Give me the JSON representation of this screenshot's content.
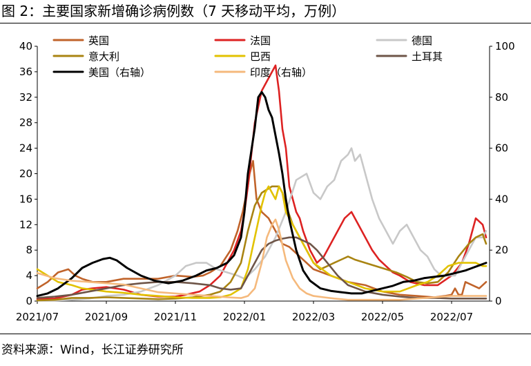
{
  "page": {
    "title": "图 2：主要国家新增确诊病例数（7 天移动平均，万例）",
    "source": "资料来源：Wind，长江证券研究所"
  },
  "chart_data": {
    "type": "line",
    "title": "主要国家新增确诊病例数（7 天移动平均，万例）",
    "xlabel": "",
    "ylabel": "",
    "ylim_left": [
      0,
      40
    ],
    "ylim_right": [
      0,
      100
    ],
    "yticks_left": [
      "0",
      "4",
      "8",
      "12",
      "16",
      "20",
      "24",
      "28",
      "32",
      "36",
      "40"
    ],
    "yticks_right": [
      "0",
      "20",
      "40",
      "60",
      "80",
      "100"
    ],
    "xticks": [
      {
        "label": "2021/07",
        "m": 0
      },
      {
        "label": "2021/09",
        "m": 2
      },
      {
        "label": "2021/11",
        "m": 4
      },
      {
        "label": "2022/01",
        "m": 6
      },
      {
        "label": "2022/03",
        "m": 8
      },
      {
        "label": "2022/05",
        "m": 10
      },
      {
        "label": "2022/07",
        "m": 12
      }
    ],
    "x_range_months": [
      0,
      13.1
    ],
    "x_unit": "months since 2021-07-01",
    "grid": false,
    "series": [
      {
        "name": "英国",
        "axis": "left",
        "color": "#C0632A",
        "x": [
          0,
          0.3,
          0.6,
          0.9,
          1.1,
          1.3,
          1.6,
          2.0,
          2.5,
          3.0,
          3.5,
          4.0,
          4.5,
          4.8,
          5.0,
          5.3,
          5.6,
          5.8,
          5.95,
          6.1,
          6.15,
          6.25,
          6.35,
          6.5,
          6.7,
          6.9,
          7.1,
          7.3,
          7.6,
          8.0,
          8.5,
          9.0,
          9.5,
          10.0,
          10.5,
          11.0,
          11.5,
          11.8,
          12.0,
          12.1,
          12.2,
          12.3,
          12.4,
          12.6,
          12.8,
          13.0
        ],
        "y": [
          2,
          3,
          4.5,
          5,
          4,
          3.5,
          3,
          3,
          3.5,
          3.5,
          3.5,
          4,
          3.8,
          4,
          4.5,
          5.5,
          8,
          11,
          14,
          18,
          20,
          22,
          16,
          14,
          13,
          11,
          9,
          8.5,
          7,
          5,
          4,
          3,
          2.5,
          1.5,
          1,
          0.8,
          0.6,
          0.8,
          1,
          2,
          1,
          1,
          3,
          2.5,
          2,
          3
        ]
      },
      {
        "name": "法国",
        "axis": "left",
        "color": "#DD2222",
        "x": [
          0,
          0.5,
          1.0,
          1.3,
          1.6,
          2.0,
          2.5,
          3.0,
          3.5,
          4.0,
          4.3,
          4.7,
          5.0,
          5.3,
          5.5,
          5.7,
          5.9,
          6.0,
          6.1,
          6.3,
          6.5,
          6.7,
          6.9,
          7.0,
          7.1,
          7.2,
          7.3,
          7.4,
          7.5,
          7.6,
          7.7,
          7.9,
          8.1,
          8.3,
          8.6,
          8.9,
          9.1,
          9.3,
          9.5,
          9.7,
          9.9,
          10.1,
          10.3,
          10.5,
          10.8,
          11.2,
          11.6,
          12.0,
          12.3,
          12.5,
          12.7,
          12.9,
          13.0
        ],
        "y": [
          0.3,
          0.4,
          1,
          1.8,
          2,
          2.2,
          1.8,
          1,
          0.7,
          0.7,
          1,
          1.5,
          2.5,
          4,
          6,
          8,
          11,
          14,
          18,
          28,
          33,
          35,
          37,
          33,
          27,
          24,
          18,
          16,
          14,
          13,
          11,
          8,
          6,
          7,
          10,
          13,
          14,
          12,
          10,
          8,
          6.5,
          5.5,
          4.5,
          4,
          3,
          2.5,
          2.5,
          4,
          6,
          9,
          13,
          12,
          10
        ]
      },
      {
        "name": "德国",
        "axis": "left",
        "color": "#C8C8C8",
        "x": [
          0,
          0.5,
          1.0,
          1.5,
          2.0,
          2.5,
          3.0,
          3.5,
          4.0,
          4.3,
          4.6,
          4.9,
          5.2,
          5.5,
          5.8,
          6.0,
          6.3,
          6.6,
          6.9,
          7.2,
          7.5,
          7.8,
          8.0,
          8.2,
          8.4,
          8.6,
          8.8,
          9.0,
          9.1,
          9.2,
          9.35,
          9.5,
          9.7,
          9.9,
          10.1,
          10.3,
          10.5,
          10.7,
          10.9,
          11.1,
          11.3,
          11.5,
          11.7,
          11.9,
          12.1,
          12.3,
          12.5,
          12.7,
          12.9,
          13.0
        ],
        "y": [
          0.1,
          0.1,
          0.2,
          0.4,
          0.8,
          1,
          1.5,
          2.5,
          4,
          5.5,
          6,
          6,
          5,
          4.5,
          4,
          3.5,
          5,
          7,
          10,
          14,
          19,
          20,
          17,
          16,
          18,
          19,
          22,
          23,
          24,
          22,
          23,
          20,
          16,
          13,
          11,
          9,
          11,
          12,
          10,
          8,
          7,
          5,
          4,
          4,
          4,
          6,
          8,
          10,
          10,
          11
        ]
      },
      {
        "name": "意大利",
        "axis": "left",
        "color": "#A98412",
        "x": [
          0,
          0.5,
          1.0,
          1.5,
          2.0,
          2.5,
          3.0,
          3.5,
          4.0,
          4.5,
          5.0,
          5.3,
          5.6,
          5.9,
          6.1,
          6.3,
          6.5,
          6.8,
          7.0,
          7.1,
          7.2,
          7.4,
          7.6,
          7.8,
          8.0,
          8.2,
          8.4,
          8.6,
          8.8,
          9.0,
          9.2,
          9.5,
          9.8,
          10.1,
          10.4,
          10.7,
          11.0,
          11.3,
          11.6,
          11.9,
          12.2,
          12.5,
          12.7,
          12.9,
          13.0
        ],
        "y": [
          0.1,
          0.2,
          0.5,
          0.5,
          0.6,
          0.5,
          0.4,
          0.3,
          0.4,
          0.6,
          1,
          1.5,
          3,
          6,
          11,
          15,
          17,
          18,
          18,
          17,
          15,
          12,
          10,
          8,
          6,
          5,
          5.5,
          6,
          6.5,
          7,
          6.5,
          6,
          5.5,
          5,
          4.5,
          3.8,
          3,
          2.8,
          3,
          4.5,
          7,
          9,
          10,
          10.5,
          9
        ]
      },
      {
        "name": "巴西",
        "axis": "left",
        "color": "#E2C200",
        "x": [
          0,
          0.3,
          0.6,
          1.0,
          1.3,
          1.6,
          2.0,
          2.5,
          3.0,
          3.5,
          4.0,
          4.5,
          5.0,
          5.3,
          5.6,
          5.9,
          6.1,
          6.3,
          6.5,
          6.6,
          6.7,
          6.8,
          6.9,
          7.0,
          7.1,
          7.2,
          7.4,
          7.6,
          7.8,
          8.0,
          8.5,
          9.0,
          9.5,
          10.0,
          10.5,
          11.0,
          11.3,
          11.6,
          11.9,
          12.2,
          12.5,
          12.7,
          12.9,
          13.0
        ],
        "y": [
          5,
          4,
          3,
          2.5,
          2,
          1.8,
          1.5,
          1.3,
          1,
          0.8,
          0.6,
          0.5,
          0.5,
          0.6,
          1,
          2,
          5,
          10,
          15,
          17,
          18,
          17,
          16,
          18,
          17,
          14,
          12,
          10,
          8,
          6,
          4,
          3,
          2,
          1.5,
          1.5,
          2.5,
          3,
          4,
          5.5,
          6,
          6,
          6,
          5.5,
          5.5
        ]
      },
      {
        "name": "土耳其",
        "axis": "left",
        "color": "#6E5548",
        "x": [
          0,
          0.5,
          1.0,
          1.5,
          2.0,
          2.5,
          3.0,
          3.5,
          4.0,
          4.5,
          5.0,
          5.3,
          5.6,
          5.9,
          6.1,
          6.3,
          6.5,
          6.7,
          6.9,
          7.1,
          7.3,
          7.5,
          7.7,
          7.9,
          8.1,
          8.4,
          8.7,
          9.0,
          9.5,
          10.0,
          10.5,
          11.0,
          11.5,
          12.0,
          12.5,
          13.0
        ],
        "y": [
          0.5,
          0.7,
          1,
          1.5,
          2,
          2.5,
          2.8,
          3,
          3,
          2.8,
          2.5,
          2,
          1.8,
          2,
          4,
          6,
          8,
          9,
          9.5,
          9.8,
          10,
          10,
          9.5,
          9,
          8,
          6,
          4,
          2.5,
          1.5,
          1,
          0.7,
          0.5,
          0.5,
          0.4,
          0.4,
          0.4
        ]
      },
      {
        "name": "美国（右轴）",
        "axis": "right",
        "color": "#000000",
        "x": [
          0,
          0.3,
          0.6,
          1.0,
          1.3,
          1.6,
          1.9,
          2.1,
          2.3,
          2.6,
          3.0,
          3.4,
          3.8,
          4.2,
          4.6,
          4.9,
          5.2,
          5.5,
          5.7,
          5.9,
          6.0,
          6.1,
          6.3,
          6.4,
          6.5,
          6.6,
          6.7,
          6.8,
          6.9,
          7.0,
          7.1,
          7.2,
          7.3,
          7.5,
          7.7,
          7.9,
          8.2,
          8.5,
          8.8,
          9.1,
          9.4,
          9.7,
          10.0,
          10.3,
          10.6,
          10.9,
          11.2,
          11.5,
          11.8,
          12.1,
          12.4,
          12.6,
          12.8,
          13.0
        ],
        "y": [
          2,
          3,
          5,
          9,
          13,
          15,
          16.5,
          17,
          16,
          13,
          10,
          8,
          7,
          8,
          10,
          12,
          13,
          15,
          18,
          25,
          35,
          50,
          68,
          80,
          82,
          80,
          75,
          72,
          65,
          58,
          50,
          40,
          32,
          20,
          12,
          8,
          5,
          4,
          3.5,
          3,
          3,
          4,
          5,
          6,
          7.5,
          8,
          9,
          9.5,
          10,
          11,
          12,
          13,
          14,
          15
        ]
      },
      {
        "name": "印度（右轴）",
        "axis": "right",
        "color": "#F5B97C",
        "x": [
          0,
          0.5,
          1.0,
          1.5,
          2.0,
          2.5,
          3.0,
          3.5,
          4.0,
          4.5,
          5.0,
          5.5,
          5.9,
          6.1,
          6.3,
          6.5,
          6.65,
          6.8,
          6.9,
          7.0,
          7.1,
          7.2,
          7.4,
          7.6,
          7.8,
          8.0,
          8.3,
          8.6,
          9.0,
          9.5,
          10.0,
          10.5,
          11.0,
          11.5,
          12.0,
          12.5,
          13.0
        ],
        "y": [
          11,
          9,
          8,
          7.5,
          7,
          6.5,
          5,
          3.5,
          3,
          2.5,
          2,
          1.5,
          1.2,
          2,
          5,
          15,
          25,
          30,
          32,
          28,
          22,
          16,
          9,
          5,
          3,
          2,
          1.5,
          1,
          0.5,
          0.5,
          0.5,
          0.5,
          1,
          1.5,
          2,
          2,
          2
        ]
      }
    ]
  }
}
